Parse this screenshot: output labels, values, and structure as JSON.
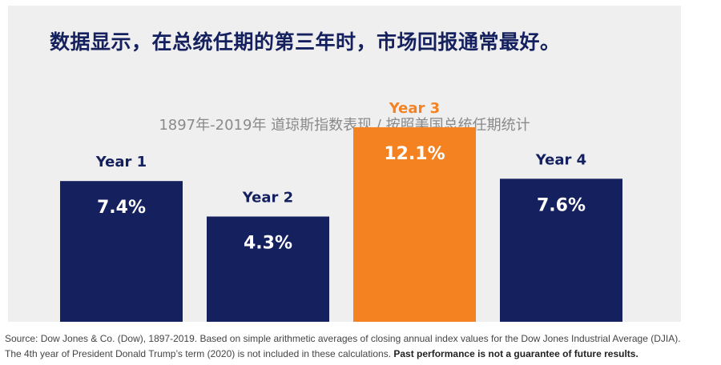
{
  "headline": "数据显示，在总统任期的第三年时，市场回报通常最好。",
  "colors": {
    "bar_default": "#15205e",
    "bar_highlight": "#f58220",
    "label_default": "#15205e",
    "label_highlight": "#f58220",
    "value_text": "#ffffff",
    "panel_bg": "#efefef"
  },
  "chart_data": {
    "type": "bar",
    "title": "1897年-2019年 道琼斯指数表现 / 按照美国总统任期统计",
    "categories": [
      "Year 1",
      "Year 2",
      "Year 3",
      "Year 4"
    ],
    "values": [
      7.4,
      4.3,
      12.1,
      7.6
    ],
    "value_labels": [
      "7.4%",
      "4.3%",
      "12.1%",
      "7.6%"
    ],
    "highlight_index": 2,
    "xlabel": "",
    "ylabel": "",
    "grid": false,
    "legend": "none"
  },
  "footer": {
    "line1": "Source: Dow Jones  & Co. (Dow), 1897-2019. Based on simple arithmetic averages of closing annual index values for the Dow Jones Industrial Average (DJIA).",
    "line2_normal": "The 4th year of President Donald Trump’s term (2020) is not included in these calculations. ",
    "line2_bold": "Past performance is not a guarantee of future results."
  }
}
